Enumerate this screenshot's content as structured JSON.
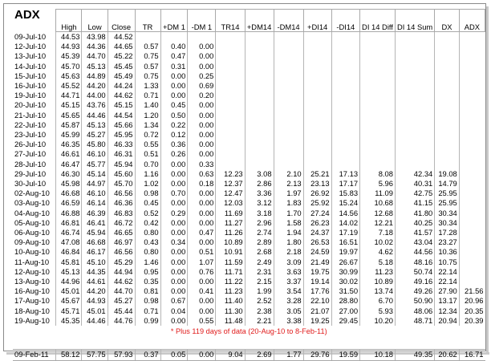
{
  "title": "ADX",
  "headers": [
    "High",
    "Low",
    "Close",
    "TR",
    "+DM 1",
    "-DM 1",
    "TR14",
    "+DM14",
    "-DM14",
    "+DI14",
    "-DI14",
    "DI 14 Diff",
    "DI 14 Sum",
    "DX",
    "ADX"
  ],
  "rows": [
    [
      "09-Jul-10",
      "44.53",
      "43.98",
      "44.52",
      "",
      "",
      "",
      "",
      "",
      "",
      "",
      "",
      "",
      "",
      "",
      ""
    ],
    [
      "12-Jul-10",
      "44.93",
      "44.36",
      "44.65",
      "0.57",
      "0.40",
      "0.00",
      "",
      "",
      "",
      "",
      "",
      "",
      "",
      "",
      ""
    ],
    [
      "13-Jul-10",
      "45.39",
      "44.70",
      "45.22",
      "0.75",
      "0.47",
      "0.00",
      "",
      "",
      "",
      "",
      "",
      "",
      "",
      "",
      ""
    ],
    [
      "14-Jul-10",
      "45.70",
      "45.13",
      "45.45",
      "0.57",
      "0.31",
      "0.00",
      "",
      "",
      "",
      "",
      "",
      "",
      "",
      "",
      ""
    ],
    [
      "15-Jul-10",
      "45.63",
      "44.89",
      "45.49",
      "0.75",
      "0.00",
      "0.25",
      "",
      "",
      "",
      "",
      "",
      "",
      "",
      "",
      ""
    ],
    [
      "16-Jul-10",
      "45.52",
      "44.20",
      "44.24",
      "1.33",
      "0.00",
      "0.69",
      "",
      "",
      "",
      "",
      "",
      "",
      "",
      "",
      ""
    ],
    [
      "19-Jul-10",
      "44.71",
      "44.00",
      "44.62",
      "0.71",
      "0.00",
      "0.20",
      "",
      "",
      "",
      "",
      "",
      "",
      "",
      "",
      ""
    ],
    [
      "20-Jul-10",
      "45.15",
      "43.76",
      "45.15",
      "1.40",
      "0.45",
      "0.00",
      "",
      "",
      "",
      "",
      "",
      "",
      "",
      "",
      ""
    ],
    [
      "21-Jul-10",
      "45.65",
      "44.46",
      "44.54",
      "1.20",
      "0.50",
      "0.00",
      "",
      "",
      "",
      "",
      "",
      "",
      "",
      "",
      ""
    ],
    [
      "22-Jul-10",
      "45.87",
      "45.13",
      "45.66",
      "1.34",
      "0.22",
      "0.00",
      "",
      "",
      "",
      "",
      "",
      "",
      "",
      "",
      ""
    ],
    [
      "23-Jul-10",
      "45.99",
      "45.27",
      "45.95",
      "0.72",
      "0.12",
      "0.00",
      "",
      "",
      "",
      "",
      "",
      "",
      "",
      "",
      ""
    ],
    [
      "26-Jul-10",
      "46.35",
      "45.80",
      "46.33",
      "0.55",
      "0.36",
      "0.00",
      "",
      "",
      "",
      "",
      "",
      "",
      "",
      "",
      ""
    ],
    [
      "27-Jul-10",
      "46.61",
      "46.10",
      "46.31",
      "0.51",
      "0.26",
      "0.00",
      "",
      "",
      "",
      "",
      "",
      "",
      "",
      "",
      ""
    ],
    [
      "28-Jul-10",
      "46.47",
      "45.77",
      "45.94",
      "0.70",
      "0.00",
      "0.33",
      "",
      "",
      "",
      "",
      "",
      "",
      "",
      "",
      ""
    ],
    [
      "29-Jul-10",
      "46.30",
      "45.14",
      "45.60",
      "1.16",
      "0.00",
      "0.63",
      "12.23",
      "3.08",
      "2.10",
      "25.21",
      "17.13",
      "8.08",
      "42.34",
      "19.08",
      ""
    ],
    [
      "30-Jul-10",
      "45.98",
      "44.97",
      "45.70",
      "1.02",
      "0.00",
      "0.18",
      "12.37",
      "2.86",
      "2.13",
      "23.13",
      "17.17",
      "5.96",
      "40.31",
      "14.79",
      ""
    ],
    [
      "02-Aug-10",
      "46.68",
      "46.10",
      "46.56",
      "0.98",
      "0.70",
      "0.00",
      "12.47",
      "3.36",
      "1.97",
      "26.92",
      "15.83",
      "11.09",
      "42.75",
      "25.95",
      ""
    ],
    [
      "03-Aug-10",
      "46.59",
      "46.14",
      "46.36",
      "0.45",
      "0.00",
      "0.00",
      "12.03",
      "3.12",
      "1.83",
      "25.92",
      "15.24",
      "10.68",
      "41.15",
      "25.95",
      ""
    ],
    [
      "04-Aug-10",
      "46.88",
      "46.39",
      "46.83",
      "0.52",
      "0.29",
      "0.00",
      "11.69",
      "3.18",
      "1.70",
      "27.24",
      "14.56",
      "12.68",
      "41.80",
      "30.34",
      ""
    ],
    [
      "05-Aug-10",
      "46.81",
      "46.41",
      "46.72",
      "0.42",
      "0.00",
      "0.00",
      "11.27",
      "2.96",
      "1.58",
      "26.23",
      "14.02",
      "12.21",
      "40.25",
      "30.34",
      ""
    ],
    [
      "06-Aug-10",
      "46.74",
      "45.94",
      "46.65",
      "0.80",
      "0.00",
      "0.47",
      "11.26",
      "2.74",
      "1.94",
      "24.37",
      "17.19",
      "7.18",
      "41.57",
      "17.28",
      ""
    ],
    [
      "09-Aug-10",
      "47.08",
      "46.68",
      "46.97",
      "0.43",
      "0.34",
      "0.00",
      "10.89",
      "2.89",
      "1.80",
      "26.53",
      "16.51",
      "10.02",
      "43.04",
      "23.27",
      ""
    ],
    [
      "10-Aug-10",
      "46.84",
      "46.17",
      "46.56",
      "0.80",
      "0.00",
      "0.51",
      "10.91",
      "2.68",
      "2.18",
      "24.59",
      "19.97",
      "4.62",
      "44.56",
      "10.36",
      ""
    ],
    [
      "11-Aug-10",
      "45.81",
      "45.10",
      "45.29",
      "1.46",
      "0.00",
      "1.07",
      "11.59",
      "2.49",
      "3.09",
      "21.49",
      "26.67",
      "5.18",
      "48.16",
      "10.75",
      ""
    ],
    [
      "12-Aug-10",
      "45.13",
      "44.35",
      "44.94",
      "0.95",
      "0.00",
      "0.76",
      "11.71",
      "2.31",
      "3.63",
      "19.75",
      "30.99",
      "11.23",
      "50.74",
      "22.14",
      ""
    ],
    [
      "13-Aug-10",
      "44.96",
      "44.61",
      "44.62",
      "0.35",
      "0.00",
      "0.00",
      "11.22",
      "2.15",
      "3.37",
      "19.14",
      "30.02",
      "10.89",
      "49.16",
      "22.14",
      ""
    ],
    [
      "16-Aug-10",
      "45.01",
      "44.20",
      "44.70",
      "0.81",
      "0.00",
      "0.41",
      "11.23",
      "1.99",
      "3.54",
      "17.76",
      "31.50",
      "13.74",
      "49.26",
      "27.90",
      "21.56"
    ],
    [
      "17-Aug-10",
      "45.67",
      "44.93",
      "45.27",
      "0.98",
      "0.67",
      "0.00",
      "11.40",
      "2.52",
      "3.28",
      "22.10",
      "28.80",
      "6.70",
      "50.90",
      "13.17",
      "20.96"
    ],
    [
      "18-Aug-10",
      "45.71",
      "45.01",
      "45.44",
      "0.71",
      "0.04",
      "0.00",
      "11.30",
      "2.38",
      "3.05",
      "21.07",
      "27.00",
      "5.93",
      "48.06",
      "12.34",
      "20.35"
    ],
    [
      "19-Aug-10",
      "45.35",
      "44.46",
      "44.76",
      "0.99",
      "0.00",
      "0.55",
      "11.48",
      "2.21",
      "3.38",
      "19.25",
      "29.45",
      "10.20",
      "48.71",
      "20.94",
      "20.39"
    ]
  ],
  "note": "* Plus 119 days of data (20-Aug-10 to 8-Feb-11)",
  "last_row": [
    "09-Feb-11",
    "58.12",
    "57.75",
    "57.93",
    "0.37",
    "0.05",
    "0.00",
    "9.04",
    "2.69",
    "1.77",
    "29.76",
    "19.59",
    "10.18",
    "49.35",
    "20.62",
    "16.71"
  ]
}
